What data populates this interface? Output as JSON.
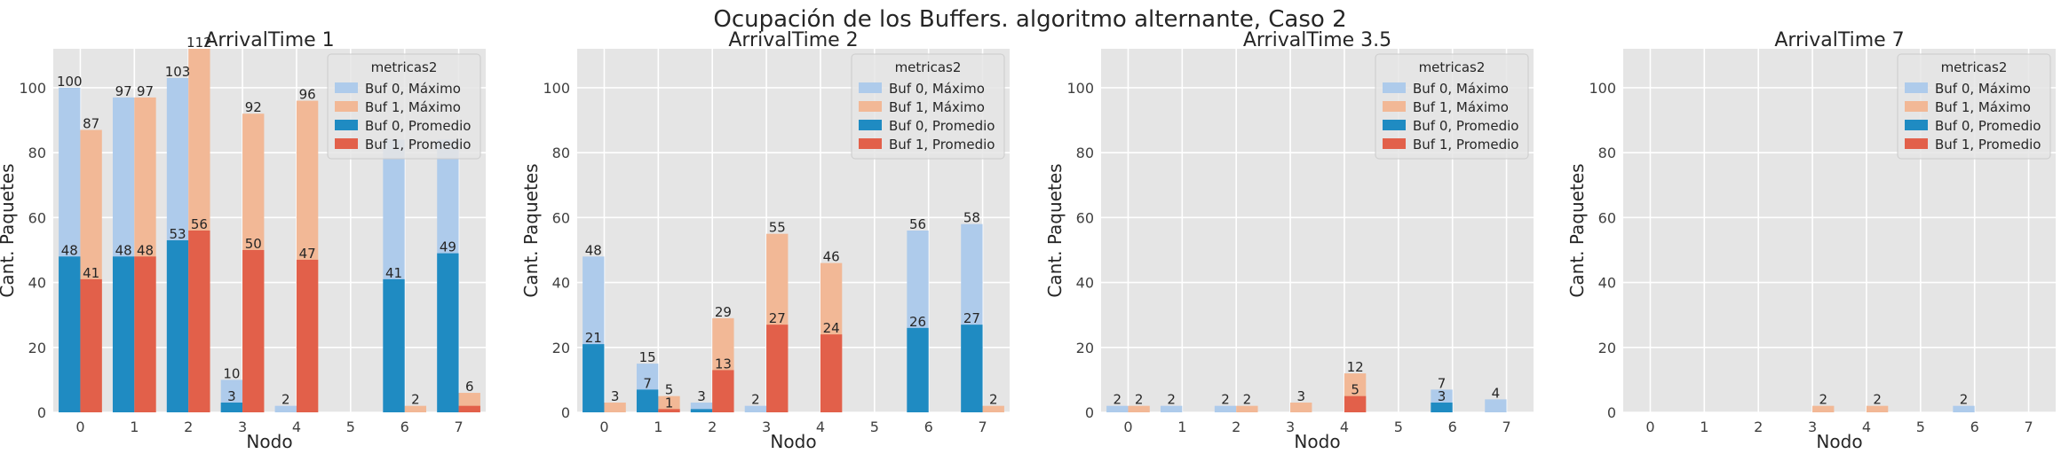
{
  "figure_title": "Ocupación de los Buffers. algoritmo alternante, Caso 2",
  "colors": {
    "Buf 0, Máximo": "#aecbeb",
    "Buf 1, Máximo": "#f2b896",
    "Buf 0, Promedio": "#1f8bc2",
    "Buf 1, Promedio": "#e2604a",
    "panel_bg": "#e5e5e5",
    "grid": "#ffffff"
  },
  "chart_data": [
    {
      "type": "bar",
      "title": "ArrivalTime 1",
      "xlabel": "Nodo",
      "ylabel": "Cant. Paquetes",
      "categories": [
        "0",
        "1",
        "2",
        "3",
        "4",
        "5",
        "6",
        "7"
      ],
      "ylim": [
        0,
        112
      ],
      "yticks": [
        0,
        20,
        40,
        60,
        80,
        100
      ],
      "legend": {
        "title": "metricas2",
        "placement": "top-right"
      },
      "series": [
        {
          "name": "Buf 0, Máximo",
          "values": [
            100,
            97,
            103,
            10,
            2,
            0,
            84,
            84
          ],
          "labels": [
            "100",
            "97",
            "103",
            "10",
            "2",
            "",
            "",
            ""
          ]
        },
        {
          "name": "Buf 1, Máximo",
          "values": [
            87,
            97,
            112,
            92,
            96,
            0,
            2,
            6
          ],
          "labels": [
            "87",
            "97",
            "112",
            "92",
            "96",
            "",
            "2",
            "6"
          ]
        },
        {
          "name": "Buf 0, Promedio",
          "values": [
            48,
            48,
            53,
            3,
            0,
            0,
            41,
            49
          ],
          "labels": [
            "48",
            "48",
            "53",
            "3",
            "",
            "",
            "41",
            "49"
          ]
        },
        {
          "name": "Buf 1, Promedio",
          "values": [
            41,
            48,
            56,
            50,
            47,
            0,
            0,
            2
          ],
          "labels": [
            "41",
            "48",
            "56",
            "50",
            "47",
            "",
            "",
            ""
          ]
        }
      ]
    },
    {
      "type": "bar",
      "title": "ArrivalTime 2",
      "xlabel": "Nodo",
      "ylabel": "Cant. Paquetes",
      "categories": [
        "0",
        "1",
        "2",
        "3",
        "4",
        "5",
        "6",
        "7"
      ],
      "ylim": [
        0,
        112
      ],
      "yticks": [
        0,
        20,
        40,
        60,
        80,
        100
      ],
      "legend": {
        "title": "metricas2",
        "placement": "top-right"
      },
      "series": [
        {
          "name": "Buf 0, Máximo",
          "values": [
            48,
            15,
            3,
            2,
            0,
            0,
            56,
            58
          ],
          "labels": [
            "48",
            "15",
            "3",
            "2",
            "",
            "",
            "56",
            "58"
          ]
        },
        {
          "name": "Buf 1, Máximo",
          "values": [
            3,
            5,
            29,
            55,
            46,
            0,
            0,
            2
          ],
          "labels": [
            "3",
            "5",
            "29",
            "55",
            "46",
            "",
            "",
            "2"
          ]
        },
        {
          "name": "Buf 0, Promedio",
          "values": [
            21,
            7,
            1,
            0,
            0,
            0,
            26,
            27
          ],
          "labels": [
            "21",
            "7",
            "",
            "",
            "",
            "",
            "26",
            "27"
          ]
        },
        {
          "name": "Buf 1, Promedio",
          "values": [
            0,
            1,
            13,
            27,
            24,
            0,
            0,
            0
          ],
          "labels": [
            "",
            "1",
            "13",
            "27",
            "24",
            "",
            "",
            ""
          ]
        }
      ]
    },
    {
      "type": "bar",
      "title": "ArrivalTime 3.5",
      "xlabel": "Nodo",
      "ylabel": "Cant. Paquetes",
      "categories": [
        "0",
        "1",
        "2",
        "3",
        "4",
        "5",
        "6",
        "7"
      ],
      "ylim": [
        0,
        112
      ],
      "yticks": [
        0,
        20,
        40,
        60,
        80,
        100
      ],
      "legend": {
        "title": "metricas2",
        "placement": "top-right"
      },
      "series": [
        {
          "name": "Buf 0, Máximo",
          "values": [
            2,
            2,
            2,
            0,
            0,
            0,
            7,
            4
          ],
          "labels": [
            "2",
            "2",
            "2",
            "",
            "",
            "",
            "7",
            "4"
          ]
        },
        {
          "name": "Buf 1, Máximo",
          "values": [
            2,
            0,
            2,
            3,
            12,
            0,
            0,
            0
          ],
          "labels": [
            "2",
            "",
            "2",
            "3",
            "12",
            "",
            "",
            ""
          ]
        },
        {
          "name": "Buf 0, Promedio",
          "values": [
            0,
            0,
            0,
            0,
            0,
            0,
            3,
            0
          ],
          "labels": [
            "",
            "",
            "",
            "",
            "",
            "",
            "3",
            ""
          ]
        },
        {
          "name": "Buf 1, Promedio",
          "values": [
            0,
            0,
            0,
            0,
            5,
            0,
            0,
            0
          ],
          "labels": [
            "",
            "",
            "",
            "",
            "5",
            "",
            "",
            ""
          ]
        }
      ]
    },
    {
      "type": "bar",
      "title": "ArrivalTime 7",
      "xlabel": "Nodo",
      "ylabel": "Cant. Paquetes",
      "categories": [
        "0",
        "1",
        "2",
        "3",
        "4",
        "5",
        "6",
        "7"
      ],
      "ylim": [
        0,
        112
      ],
      "yticks": [
        0,
        20,
        40,
        60,
        80,
        100
      ],
      "legend": {
        "title": "metricas2",
        "placement": "top-right"
      },
      "series": [
        {
          "name": "Buf 0, Máximo",
          "values": [
            0,
            0,
            0,
            0,
            0,
            0,
            2,
            0
          ],
          "labels": [
            "",
            "",
            "",
            "",
            "",
            "",
            "2",
            ""
          ]
        },
        {
          "name": "Buf 1, Máximo",
          "values": [
            0,
            0,
            0,
            2,
            2,
            0,
            0,
            0
          ],
          "labels": [
            "",
            "",
            "",
            "2",
            "2",
            "",
            "",
            ""
          ]
        },
        {
          "name": "Buf 0, Promedio",
          "values": [
            0,
            0,
            0,
            0,
            0,
            0,
            0,
            0
          ],
          "labels": [
            "",
            "",
            "",
            "",
            "",
            "",
            "",
            ""
          ]
        },
        {
          "name": "Buf 1, Promedio",
          "values": [
            0,
            0,
            0,
            0,
            0,
            0,
            0,
            0
          ],
          "labels": [
            "",
            "",
            "",
            "",
            "",
            "",
            "",
            ""
          ]
        }
      ]
    }
  ]
}
